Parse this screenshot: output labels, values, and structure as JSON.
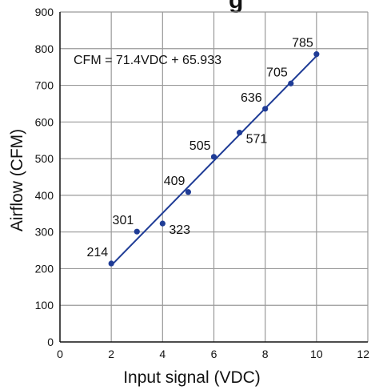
{
  "chart_data": {
    "type": "scatter",
    "title_fragment": "g",
    "xlabel": "Input signal (VDC)",
    "ylabel": "Airflow (CFM)",
    "xlim": [
      0,
      12
    ],
    "ylim": [
      0,
      900
    ],
    "x_ticks": [
      0,
      2,
      4,
      6,
      8,
      10,
      12
    ],
    "y_ticks": [
      0,
      100,
      200,
      300,
      400,
      500,
      600,
      700,
      800,
      900
    ],
    "grid": true,
    "legend": "none",
    "colors": {
      "series": "#1f3c96",
      "grid": "#9a9a9a",
      "axis": "#111111"
    },
    "series": [
      {
        "x": [
          2,
          3,
          4,
          5,
          6,
          7,
          8,
          9,
          10
        ],
        "y": [
          214,
          301,
          323,
          409,
          505,
          571,
          636,
          705,
          785
        ],
        "labels": [
          "214",
          "301",
          "323",
          "409",
          "505",
          "571",
          "636",
          "705",
          "785"
        ]
      }
    ],
    "trendline": {
      "slope": 71.4,
      "intercept": 65.933,
      "x_range": [
        2,
        10
      ]
    },
    "annotation": "CFM = 71.4VDC + 65.933"
  }
}
